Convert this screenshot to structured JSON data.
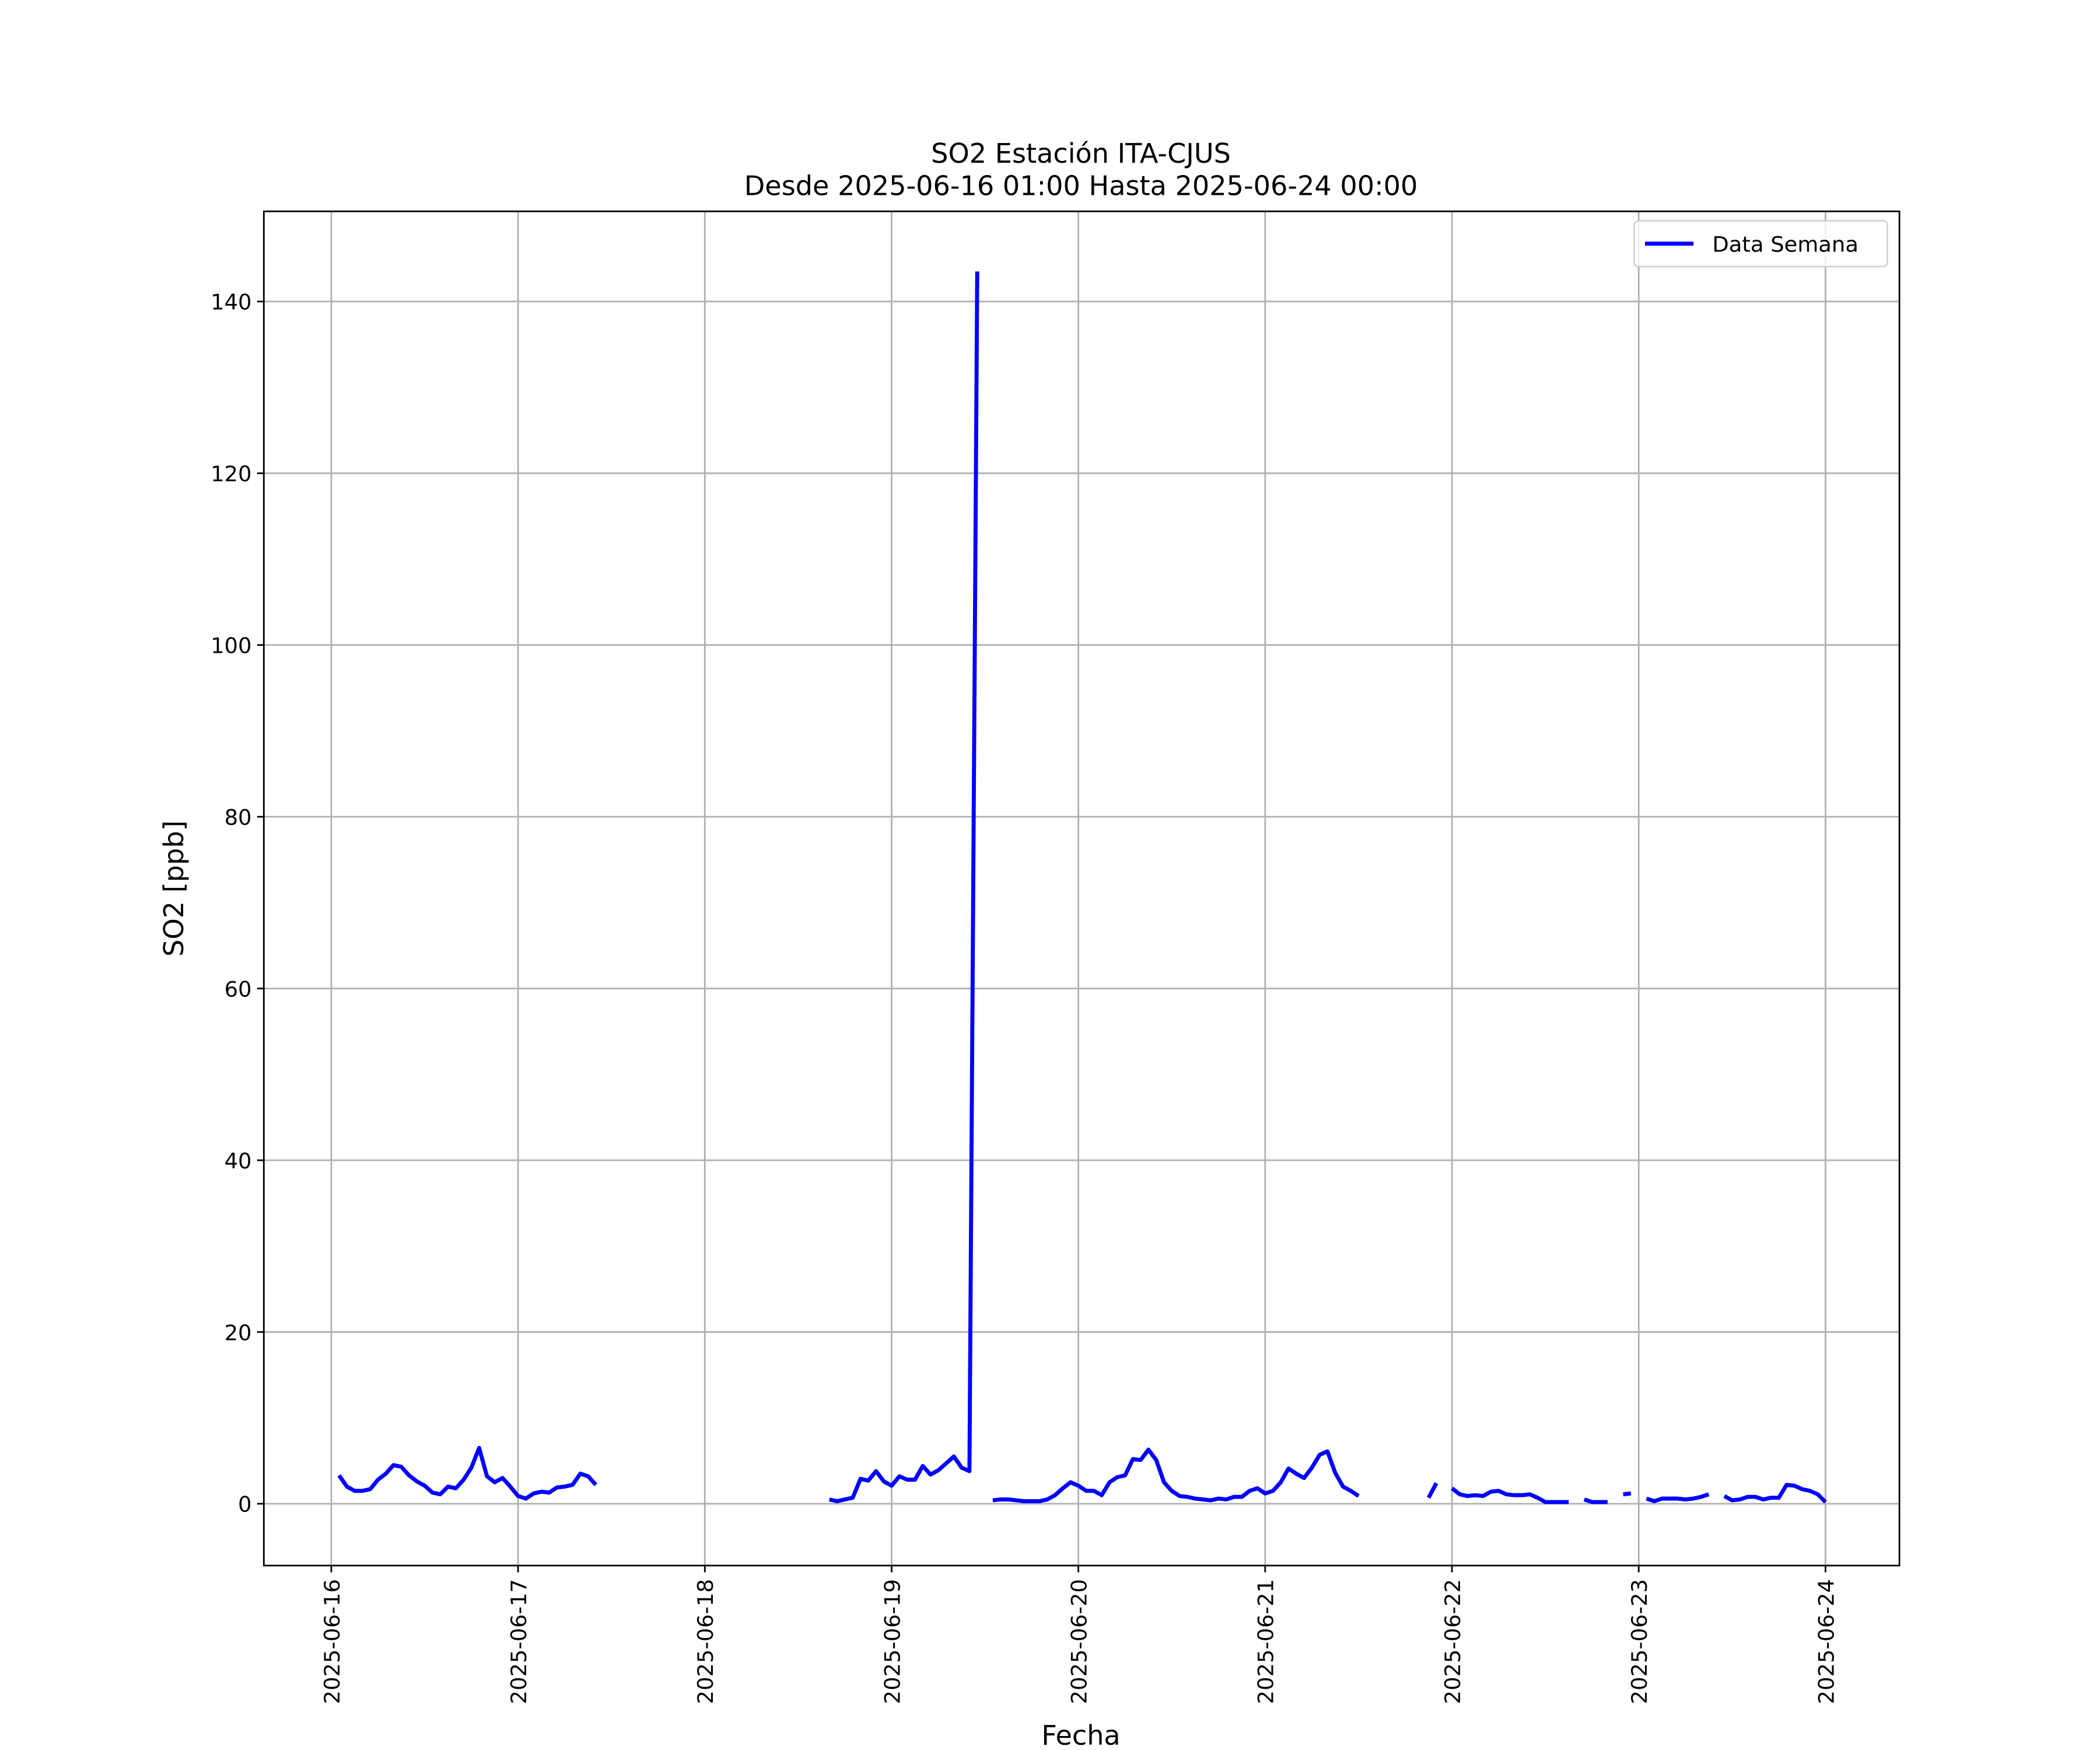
{
  "chart_data": {
    "type": "line",
    "title": "SO2 Estación ITA-CJUS",
    "subtitle": "Desde 2025-06-16 01:00 Hasta 2025-06-24 00:00",
    "x_label": "Fecha",
    "y_label": "SO2 [ppb]",
    "legend": "upper right",
    "grid": true,
    "xlim": [
      "2025-06-15 15:20",
      "2025-06-24 09:30"
    ],
    "xticks": [
      "2025-06-16",
      "2025-06-17",
      "2025-06-18",
      "2025-06-19",
      "2025-06-20",
      "2025-06-21",
      "2025-06-22",
      "2025-06-23",
      "2025-06-24"
    ],
    "ylim": [
      -7.2,
      150.5
    ],
    "yticks": [
      0,
      20,
      40,
      60,
      80,
      100,
      120,
      140
    ],
    "x": [
      "2025-06-16 01:00",
      "2025-06-16 02:00",
      "2025-06-16 03:00",
      "2025-06-16 04:00",
      "2025-06-16 05:00",
      "2025-06-16 06:00",
      "2025-06-16 07:00",
      "2025-06-16 08:00",
      "2025-06-16 09:00",
      "2025-06-16 10:00",
      "2025-06-16 11:00",
      "2025-06-16 12:00",
      "2025-06-16 13:00",
      "2025-06-16 14:00",
      "2025-06-16 15:00",
      "2025-06-16 16:00",
      "2025-06-16 17:00",
      "2025-06-16 18:00",
      "2025-06-16 19:00",
      "2025-06-16 20:00",
      "2025-06-16 21:00",
      "2025-06-16 22:00",
      "2025-06-16 23:00",
      "2025-06-17 00:00",
      "2025-06-17 01:00",
      "2025-06-17 02:00",
      "2025-06-17 03:00",
      "2025-06-17 04:00",
      "2025-06-17 05:00",
      "2025-06-17 06:00",
      "2025-06-17 07:00",
      "2025-06-17 08:00",
      "2025-06-17 09:00",
      "2025-06-17 10:00",
      "2025-06-17 11:00",
      "2025-06-18 16:00",
      "2025-06-18 17:00",
      "2025-06-18 18:00",
      "2025-06-18 19:00",
      "2025-06-18 20:00",
      "2025-06-18 21:00",
      "2025-06-18 22:00",
      "2025-06-18 23:00",
      "2025-06-19 00:00",
      "2025-06-19 01:00",
      "2025-06-19 02:00",
      "2025-06-19 03:00",
      "2025-06-19 04:00",
      "2025-06-19 05:00",
      "2025-06-19 06:00",
      "2025-06-19 07:00",
      "2025-06-19 08:00",
      "2025-06-19 09:00",
      "2025-06-19 10:00",
      "2025-06-19 11:00",
      "2025-06-19 12:00",
      "2025-06-19 13:00",
      "2025-06-19 14:00",
      "2025-06-19 15:00",
      "2025-06-19 16:00",
      "2025-06-19 17:00",
      "2025-06-19 18:00",
      "2025-06-19 19:00",
      "2025-06-19 20:00",
      "2025-06-19 21:00",
      "2025-06-19 22:00",
      "2025-06-19 23:00",
      "2025-06-20 00:00",
      "2025-06-20 01:00",
      "2025-06-20 02:00",
      "2025-06-20 03:00",
      "2025-06-20 04:00",
      "2025-06-20 05:00",
      "2025-06-20 06:00",
      "2025-06-20 07:00",
      "2025-06-20 08:00",
      "2025-06-20 09:00",
      "2025-06-20 10:00",
      "2025-06-20 11:00",
      "2025-06-20 12:00",
      "2025-06-20 13:00",
      "2025-06-20 14:00",
      "2025-06-20 15:00",
      "2025-06-20 16:00",
      "2025-06-20 17:00",
      "2025-06-20 18:00",
      "2025-06-20 19:00",
      "2025-06-20 20:00",
      "2025-06-20 21:00",
      "2025-06-20 22:00",
      "2025-06-20 23:00",
      "2025-06-21 00:00",
      "2025-06-21 01:00",
      "2025-06-21 02:00",
      "2025-06-21 03:00",
      "2025-06-21 04:00",
      "2025-06-21 05:00",
      "2025-06-21 06:00",
      "2025-06-21 07:00",
      "2025-06-21 08:00",
      "2025-06-21 09:00",
      "2025-06-21 10:00",
      "2025-06-21 11:00",
      "2025-06-21 12:00",
      "2025-06-21 13:00",
      "2025-06-21 21:00",
      "2025-06-21 22:00",
      "2025-06-21 23:00",
      "2025-06-22 00:00",
      "2025-06-22 01:00",
      "2025-06-22 02:00",
      "2025-06-22 03:00",
      "2025-06-22 04:00",
      "2025-06-22 05:00",
      "2025-06-22 06:00",
      "2025-06-22 07:00",
      "2025-06-22 08:00",
      "2025-06-22 09:00",
      "2025-06-22 10:00",
      "2025-06-22 11:00",
      "2025-06-22 12:00",
      "2025-06-22 13:00",
      "2025-06-22 14:00",
      "2025-06-22 15:00",
      "2025-06-22 16:00",
      "2025-06-22 17:00",
      "2025-06-22 18:00",
      "2025-06-22 19:00",
      "2025-06-22 20:00",
      "2025-06-22 21:00",
      "2025-06-22 22:00",
      "2025-06-22 23:00",
      "2025-06-23 00:00",
      "2025-06-23 01:00",
      "2025-06-23 02:00",
      "2025-06-23 03:00",
      "2025-06-23 04:00",
      "2025-06-23 05:00",
      "2025-06-23 06:00",
      "2025-06-23 07:00",
      "2025-06-23 08:00",
      "2025-06-23 09:00",
      "2025-06-23 10:00",
      "2025-06-23 11:00",
      "2025-06-23 12:00",
      "2025-06-23 13:00",
      "2025-06-23 14:00",
      "2025-06-23 15:00",
      "2025-06-23 16:00",
      "2025-06-23 17:00",
      "2025-06-23 18:00",
      "2025-06-23 19:00",
      "2025-06-23 20:00",
      "2025-06-23 21:00",
      "2025-06-23 22:00",
      "2025-06-23 23:00",
      "2025-06-24 00:00"
    ],
    "series": [
      {
        "name": "Data Semana",
        "color": "#0000ff",
        "values": [
          3.3,
          2.0,
          1.5,
          1.5,
          1.7,
          2.8,
          3.5,
          4.5,
          4.3,
          3.3,
          2.6,
          2.1,
          1.3,
          1.1,
          2.0,
          1.8,
          2.8,
          4.2,
          6.5,
          3.2,
          2.5,
          3.0,
          2.0,
          0.9,
          0.6,
          1.2,
          1.4,
          1.3,
          1.9,
          2.0,
          2.2,
          3.5,
          3.2,
          2.2,
          null,
          0.5,
          0.3,
          0.5,
          0.7,
          2.9,
          2.7,
          3.8,
          2.6,
          2.1,
          3.2,
          2.8,
          2.8,
          4.4,
          3.4,
          3.9,
          4.7,
          5.5,
          4.2,
          3.8,
          143.5,
          null,
          0.4,
          0.5,
          0.5,
          0.4,
          0.3,
          0.3,
          0.3,
          0.5,
          1.0,
          1.8,
          2.5,
          2.1,
          1.5,
          1.5,
          1.0,
          2.5,
          3.1,
          3.3,
          5.2,
          5.1,
          6.3,
          5.1,
          2.5,
          1.5,
          0.9,
          0.8,
          0.6,
          0.5,
          0.4,
          0.6,
          0.5,
          0.8,
          0.8,
          1.5,
          1.8,
          1.2,
          1.5,
          2.5,
          4.1,
          3.5,
          3.0,
          4.2,
          5.7,
          6.1,
          3.6,
          2.0,
          1.5,
          0.9,
          null,
          0.7,
          2.4,
          null,
          1.8,
          1.1,
          0.9,
          1.0,
          0.9,
          1.4,
          1.5,
          1.1,
          1.0,
          1.0,
          1.1,
          0.7,
          0.2,
          0.2,
          0.2,
          0.2,
          null,
          0.5,
          0.2,
          0.2,
          0.2,
          null,
          1.1,
          1.2,
          null,
          0.6,
          0.3,
          0.6,
          0.6,
          0.6,
          0.5,
          0.6,
          0.8,
          1.1,
          null,
          0.9,
          0.4,
          0.5,
          0.8,
          0.8,
          0.5,
          0.7,
          0.7,
          2.2,
          2.1,
          1.7,
          1.5,
          1.1,
          0.2
        ]
      }
    ]
  }
}
